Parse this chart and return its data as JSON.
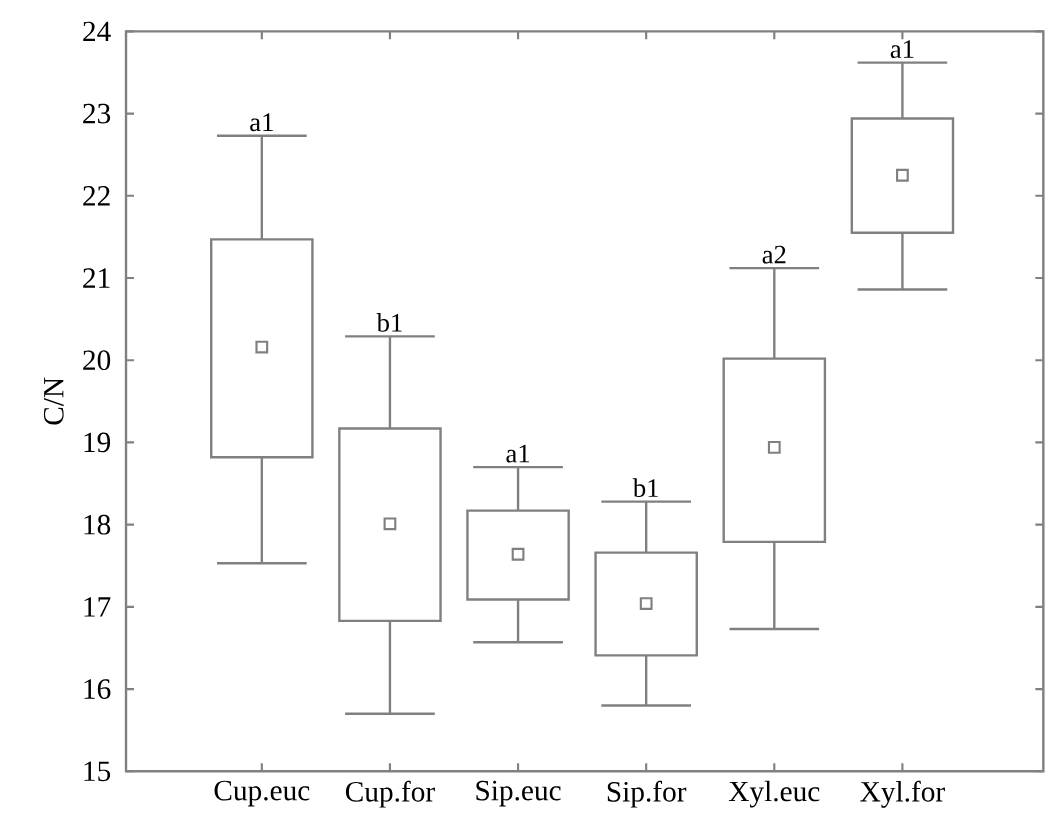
{
  "chart_data": {
    "type": "box",
    "ylabel": "C/N",
    "categories": [
      "Cup.euc",
      "Cup.for",
      "Sip.euc",
      "Sip.for",
      "Xyl.euc",
      "Xyl.for"
    ],
    "boxes": [
      {
        "low": 17.53,
        "q1": 18.82,
        "median": 20.16,
        "q3": 21.47,
        "high": 22.73
      },
      {
        "low": 15.7,
        "q1": 16.83,
        "median": 18.01,
        "q3": 19.17,
        "high": 20.29
      },
      {
        "low": 16.57,
        "q1": 17.09,
        "median": 17.64,
        "q3": 18.17,
        "high": 18.7
      },
      {
        "low": 15.8,
        "q1": 16.41,
        "median": 17.04,
        "q3": 17.66,
        "high": 18.28
      },
      {
        "low": 16.73,
        "q1": 17.79,
        "median": 18.94,
        "q3": 20.02,
        "high": 21.12
      },
      {
        "low": 20.86,
        "q1": 21.55,
        "median": 22.25,
        "q3": 22.94,
        "high": 23.62
      }
    ],
    "color": "#808080",
    "ylim": [
      15,
      24
    ],
    "yticks": [
      15,
      16,
      17,
      18,
      19,
      20,
      21,
      22,
      23,
      24
    ],
    "grid": false,
    "annotations": [
      "a1",
      "b1",
      "a1",
      "b1",
      "a2",
      "a1"
    ]
  }
}
